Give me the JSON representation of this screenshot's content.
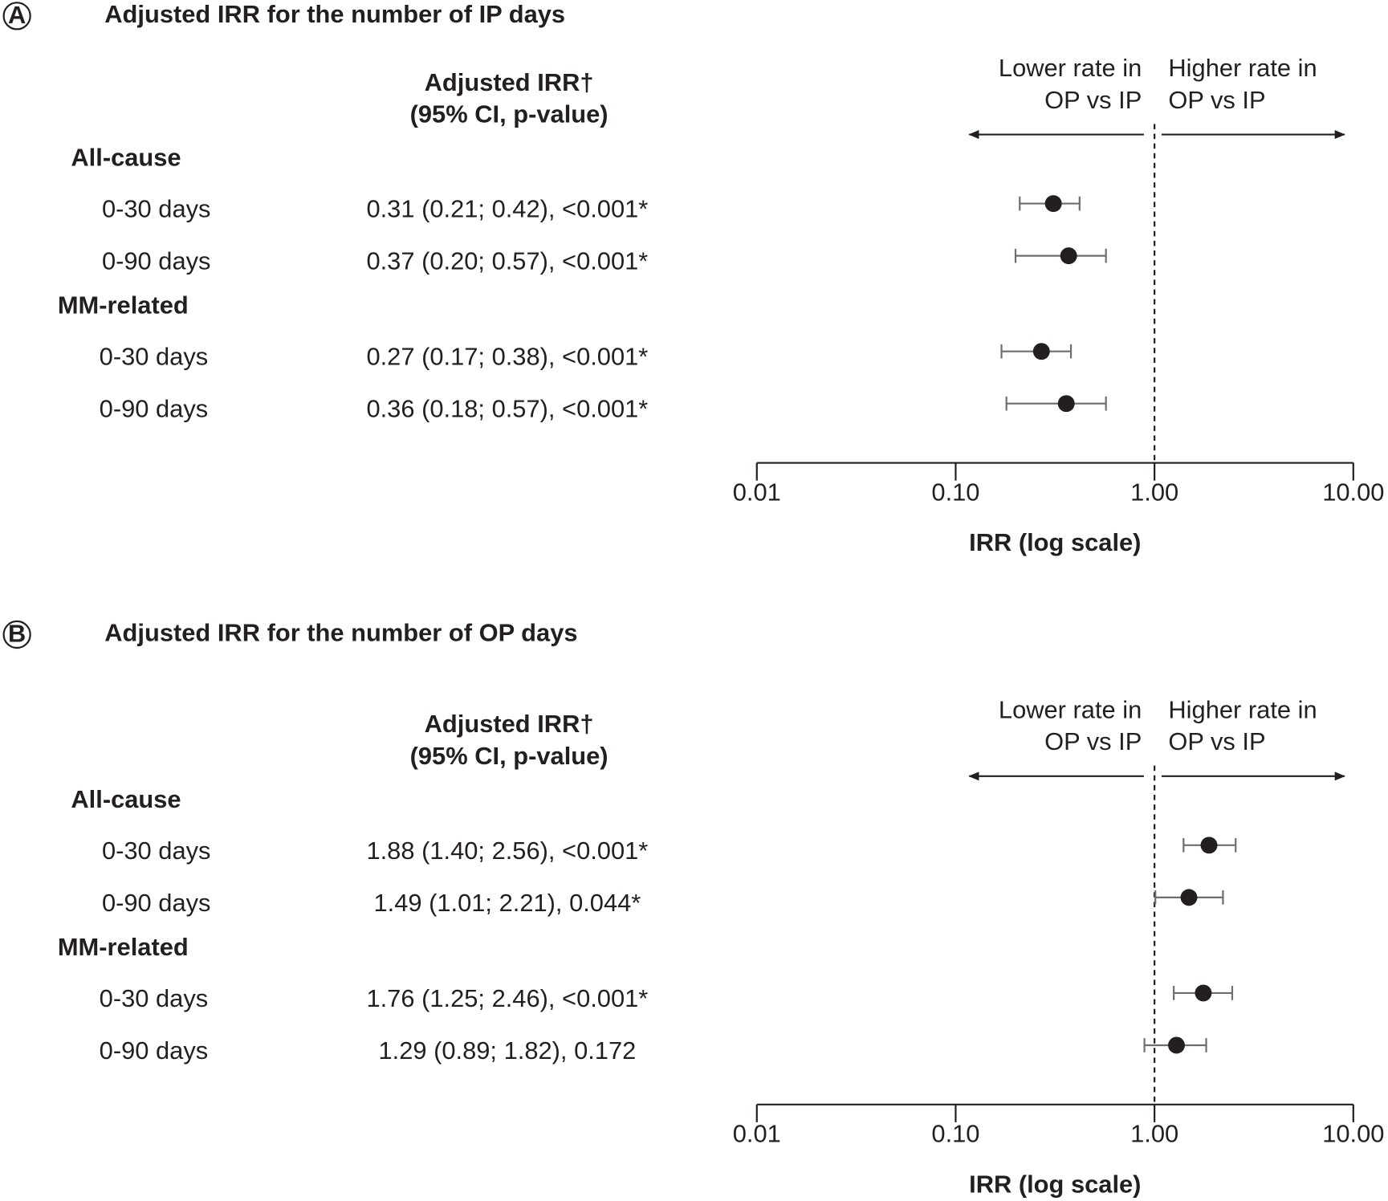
{
  "chart_data": [
    {
      "type": "forest",
      "panel": "A",
      "title": "Adjusted IRR for the number of IP days",
      "column_header": [
        "Adjusted IRR†",
        "(95% CI, p-value)"
      ],
      "left_note": [
        "Lower rate in",
        "OP vs IP"
      ],
      "right_note": [
        "Higher rate in",
        "OP vs IP"
      ],
      "groups": [
        {
          "name": "All-cause",
          "categories": [
            "0-30 days",
            "0-90 days"
          ],
          "values": [
            0.31,
            0.37
          ],
          "lower": [
            0.21,
            0.2
          ],
          "upper": [
            0.42,
            0.57
          ],
          "value_labels": [
            "0.31 (0.21; 0.42), <0.001*",
            "0.37 (0.20; 0.57), <0.001*"
          ]
        },
        {
          "name": "MM-related",
          "categories": [
            "0-30 days",
            "0-90 days"
          ],
          "values": [
            0.27,
            0.36
          ],
          "lower": [
            0.17,
            0.18
          ],
          "upper": [
            0.38,
            0.57
          ],
          "value_labels": [
            "0.27 (0.17; 0.38), <0.001*",
            "0.36 (0.18; 0.57), <0.001*"
          ]
        }
      ],
      "x_label": "IRR (log scale)",
      "log_scale": true,
      "reference": 1,
      "xlim": [
        0.01,
        10
      ],
      "xticks": [
        0.01,
        {
          "value": 0.1,
          "label": "0.10"
        },
        {
          "value": 1,
          "label": "1.00"
        },
        {
          "value": 10,
          "label": "10.00"
        }
      ]
    },
    {
      "type": "forest",
      "panel": "B",
      "title": "Adjusted IRR for the number of OP days",
      "column_header": [
        "Adjusted IRR†",
        "(95% CI, p-value)"
      ],
      "left_note": [
        "Lower rate in",
        "OP vs IP"
      ],
      "right_note": [
        "Higher rate in",
        "OP vs IP"
      ],
      "groups": [
        {
          "name": "All-cause",
          "categories": [
            "0-30 days",
            "0-90 days"
          ],
          "values": [
            1.88,
            1.49
          ],
          "lower": [
            1.4,
            1.01
          ],
          "upper": [
            2.56,
            2.21
          ],
          "value_labels": [
            "1.88 (1.40; 2.56), <0.001*",
            "1.49 (1.01; 2.21), 0.044*"
          ]
        },
        {
          "name": "MM-related",
          "categories": [
            "0-30 days",
            "0-90 days"
          ],
          "values": [
            1.76,
            1.29
          ],
          "lower": [
            1.25,
            0.89
          ],
          "upper": [
            2.46,
            1.82
          ],
          "value_labels": [
            "1.76 (1.25; 2.46), <0.001*",
            "1.29 (0.89; 1.82), 0.172"
          ]
        }
      ],
      "x_label": "IRR (log scale)",
      "log_scale": true,
      "reference": 1,
      "xlim": [
        0.01,
        10
      ],
      "xticks": [
        0.01,
        {
          "value": 0.1,
          "label": "0.10"
        },
        {
          "value": 1,
          "label": "1.00"
        },
        {
          "value": 10,
          "label": "10.00"
        }
      ]
    }
  ]
}
